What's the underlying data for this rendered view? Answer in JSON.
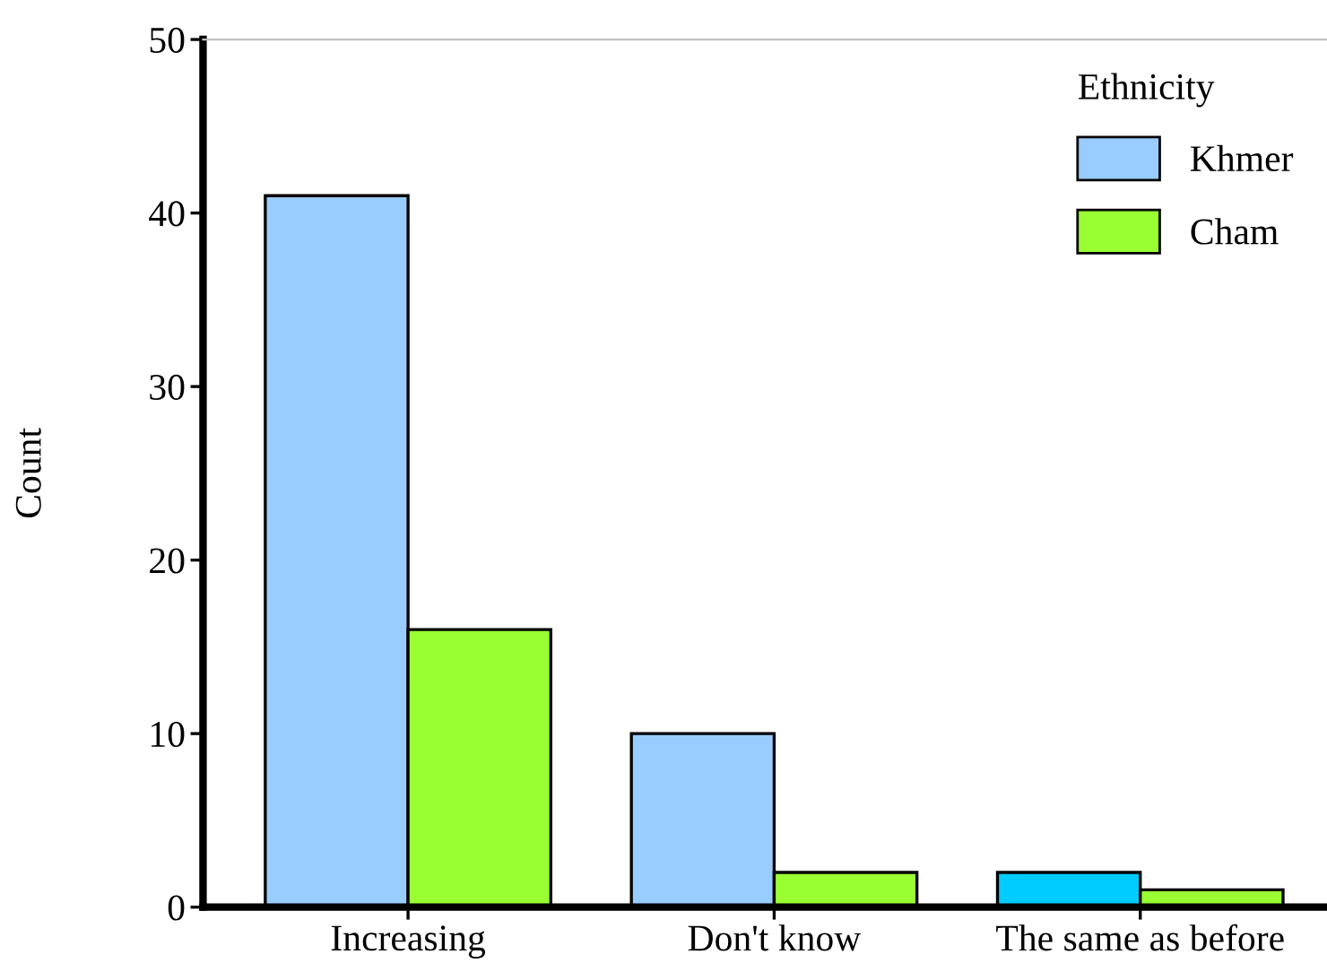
{
  "chart_data": {
    "type": "bar",
    "ylabel": "Count",
    "legend_title": "Ethnicity",
    "categories": [
      "Increasing",
      "Don't know",
      "The same as before"
    ],
    "series": [
      {
        "name": "Khmer",
        "color": "#99ccff",
        "colors": [
          "#99ccff",
          "#99ccff",
          "#00ccff"
        ],
        "values": [
          41,
          10,
          2
        ]
      },
      {
        "name": "Cham",
        "color": "#99ff33",
        "values": [
          16,
          2,
          1
        ]
      }
    ],
    "ylim": [
      0,
      50
    ],
    "yticks": [
      0,
      10,
      20,
      30,
      40,
      50
    ],
    "grid": false,
    "legend": "top right"
  }
}
